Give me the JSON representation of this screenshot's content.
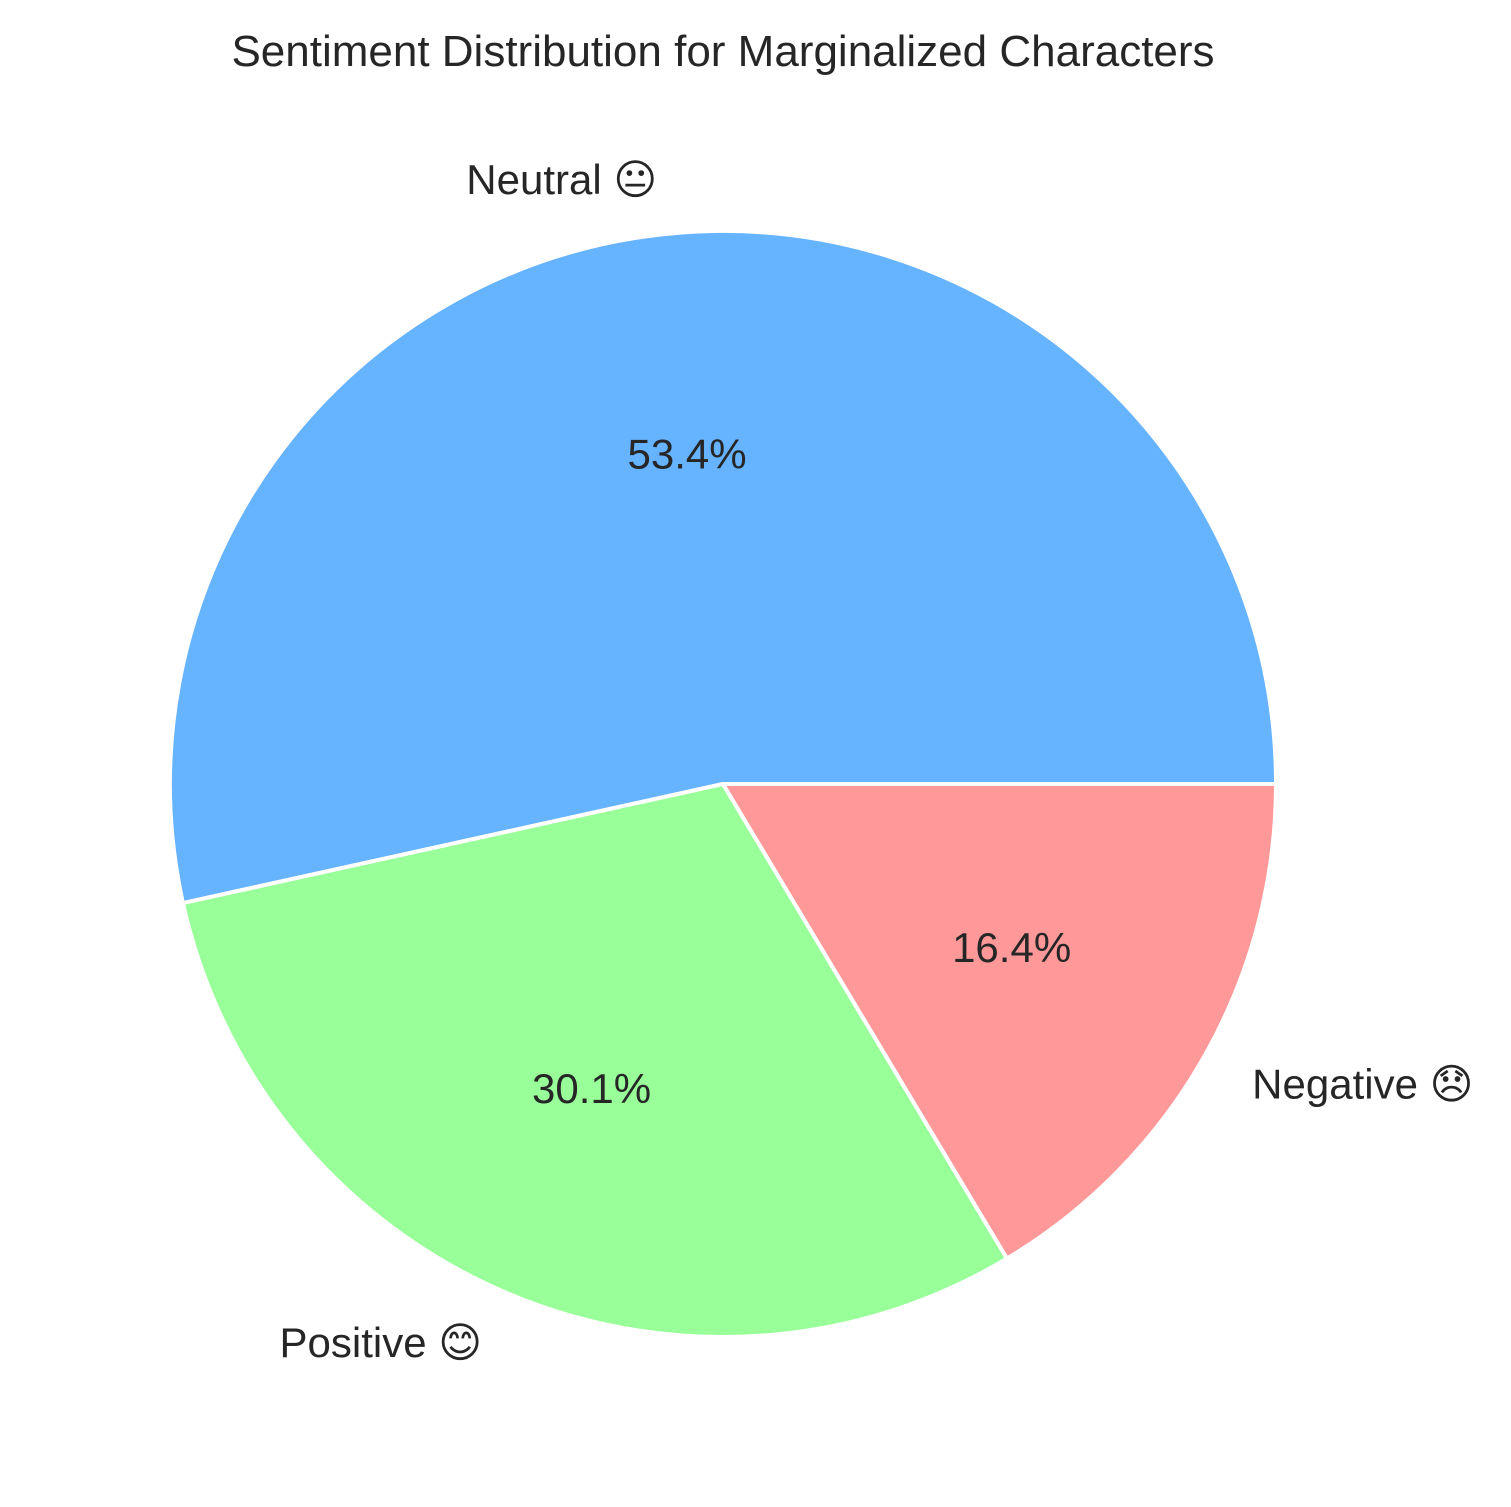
{
  "chart_data": {
    "type": "pie",
    "title": "Sentiment Distribution for Marginalized Characters",
    "start_angle": "0 degrees (3 o'clock), counter-clockwise",
    "slices": [
      {
        "label": "Neutral 😐",
        "value": 53.4,
        "pct_label": "53.4%",
        "color": "#66b3ff"
      },
      {
        "label": "Positive 😊",
        "value": 30.1,
        "pct_label": "30.1%",
        "color": "#99ff99"
      },
      {
        "label": "Negative 😞",
        "value": 16.4,
        "pct_label": "16.4%",
        "color": "#ff9999"
      }
    ]
  }
}
